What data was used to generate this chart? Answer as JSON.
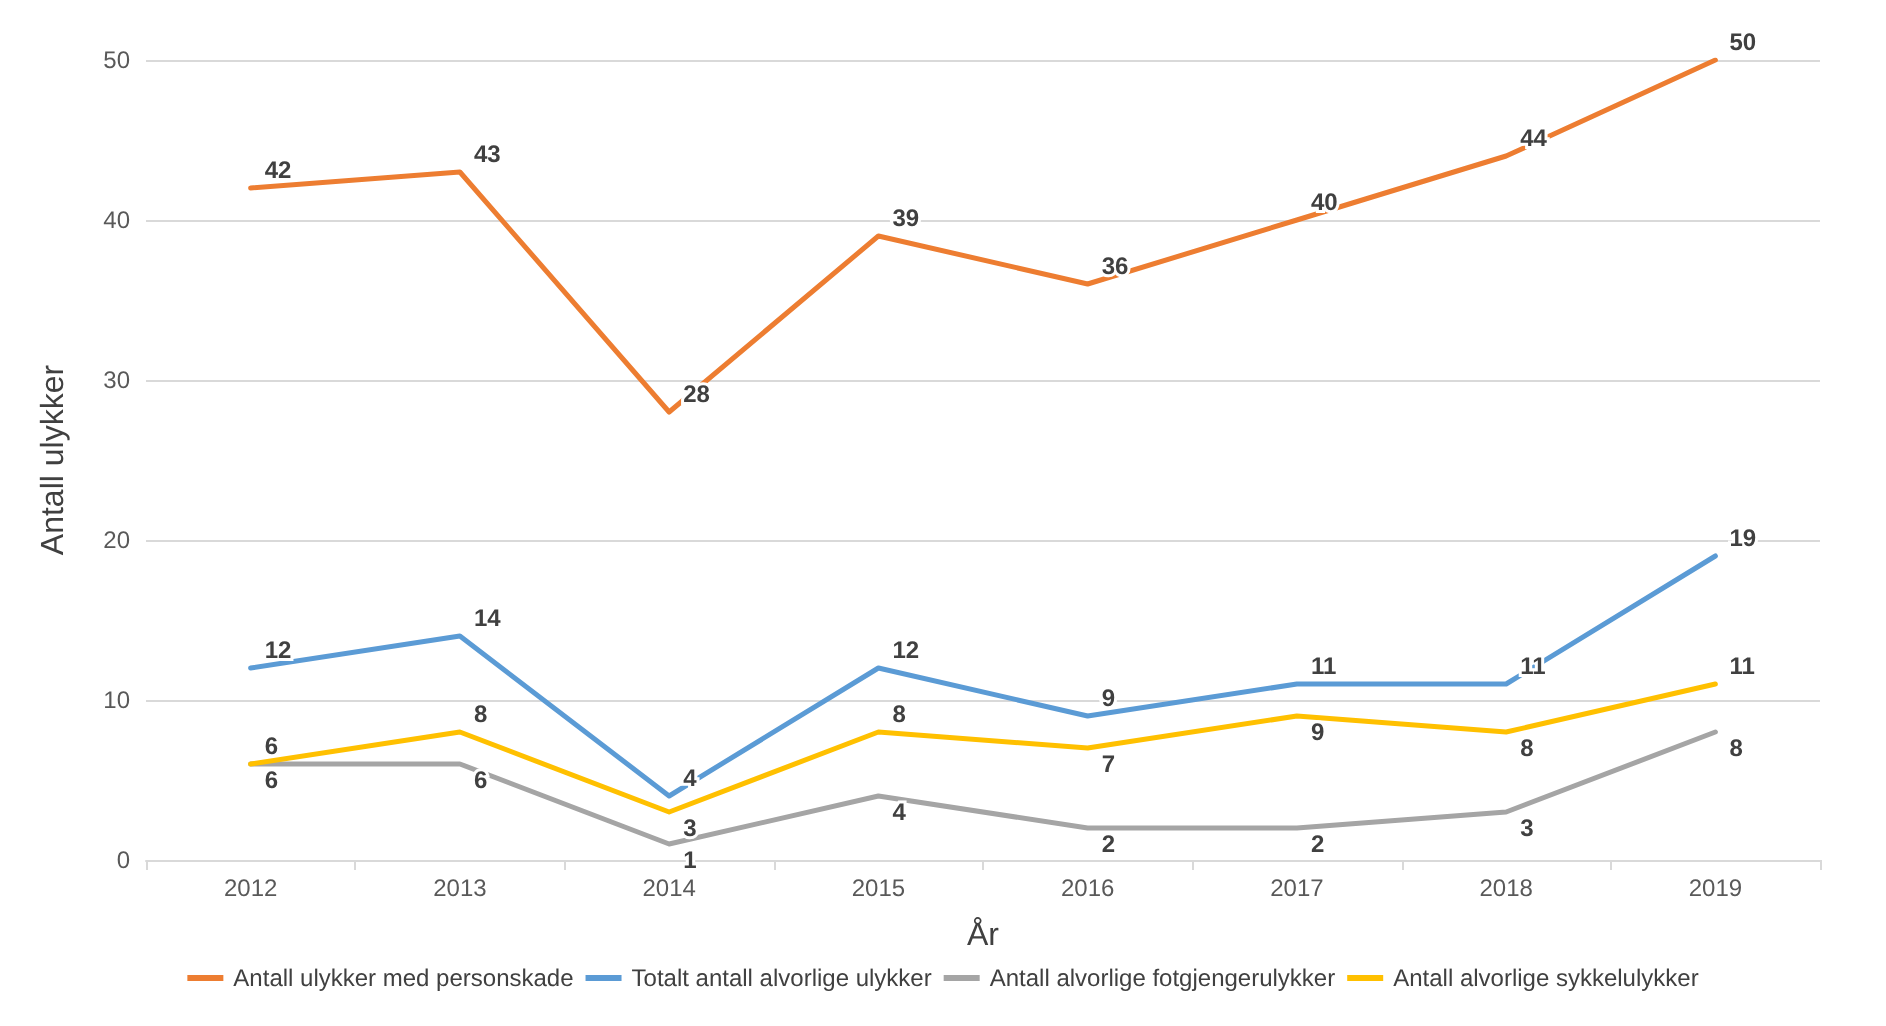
{
  "chart_data": {
    "type": "line",
    "xlabel": "År",
    "ylabel": "Antall ulykker",
    "categories": [
      "2012",
      "2013",
      "2014",
      "2015",
      "2016",
      "2017",
      "2018",
      "2019"
    ],
    "series": [
      {
        "name": "Antall ulykker med personskade",
        "color": "#ed7d31",
        "values": [
          42,
          43,
          28,
          39,
          36,
          40,
          44,
          50
        ]
      },
      {
        "name": "Totalt antall alvorlige ulykker",
        "color": "#5b9bd5",
        "values": [
          12,
          14,
          4,
          12,
          9,
          11,
          11,
          19
        ]
      },
      {
        "name": "Antall alvorlige fotgjengerulykker",
        "color": "#a5a5a5",
        "values": [
          6,
          6,
          1,
          4,
          2,
          2,
          3,
          8
        ]
      },
      {
        "name": "Antall alvorlige sykkelulykker",
        "color": "#ffc000",
        "values": [
          6,
          8,
          3,
          8,
          7,
          9,
          8,
          11
        ]
      }
    ],
    "ylim": [
      0,
      50
    ],
    "yticks": [
      0,
      10,
      20,
      30,
      40,
      50
    ],
    "grid": "y",
    "legend": "bottom",
    "data_labels": true,
    "marker": "none",
    "line_style": "solid"
  }
}
